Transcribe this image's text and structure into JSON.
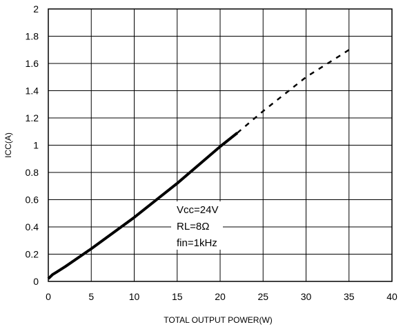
{
  "chart_data": {
    "type": "line",
    "xlabel": "TOTAL OUTPUT POWER(W)",
    "ylabel": "ICC(A)",
    "xlim": [
      0,
      40
    ],
    "ylim": [
      0,
      2
    ],
    "x_ticks": [
      "0",
      "5",
      "10",
      "15",
      "20",
      "25",
      "30",
      "35",
      "40"
    ],
    "y_ticks": [
      "0",
      "0.2",
      "0.4",
      "0.6",
      "0.8",
      "1",
      "1.2",
      "1.4",
      "1.6",
      "1.8",
      "2"
    ],
    "grid": true,
    "series": [
      {
        "style": "solid",
        "x": [
          0,
          0.5,
          1,
          2,
          5,
          10,
          15,
          20,
          22
        ],
        "y": [
          0.02,
          0.05,
          0.07,
          0.11,
          0.24,
          0.47,
          0.72,
          0.99,
          1.09
        ]
      },
      {
        "style": "dashed",
        "x": [
          22,
          25,
          30,
          35
        ],
        "y": [
          1.09,
          1.25,
          1.5,
          1.7
        ]
      }
    ],
    "annotations": [
      "Vcc=24V",
      "RL=8Ω",
      "fin=1kHz"
    ]
  }
}
